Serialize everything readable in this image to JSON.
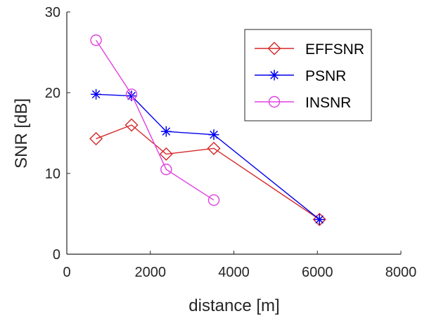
{
  "chart_data": {
    "type": "line",
    "title": "",
    "xlabel": "distance [m]",
    "ylabel": "SNR [dB]",
    "xlim": [
      0,
      8000
    ],
    "ylim": [
      0,
      30
    ],
    "xticks": [
      0,
      2000,
      4000,
      6000,
      8000
    ],
    "yticks": [
      0,
      10,
      20,
      30
    ],
    "xtick_labels": [
      "0",
      "2000",
      "4000",
      "6000",
      "8000"
    ],
    "ytick_labels": [
      "0",
      "10",
      "20",
      "30"
    ],
    "grid": false,
    "legend_position": "top-right",
    "series": [
      {
        "name": "EFFSNR",
        "color": "#d62728",
        "marker": "diamond",
        "x": [
          700,
          1550,
          2380,
          3520,
          6050
        ],
        "y": [
          14.3,
          16.0,
          12.4,
          13.1,
          4.3
        ]
      },
      {
        "name": "PSNR",
        "color": "#0000ee",
        "marker": "asterisk",
        "x": [
          700,
          1550,
          2380,
          3520,
          6050
        ],
        "y": [
          19.8,
          19.6,
          15.2,
          14.8,
          4.3
        ]
      },
      {
        "name": "INSNR",
        "color": "#e040e0",
        "marker": "circle",
        "x": [
          700,
          1550,
          2380,
          3520
        ],
        "y": [
          26.5,
          19.8,
          10.5,
          6.7
        ]
      }
    ]
  }
}
